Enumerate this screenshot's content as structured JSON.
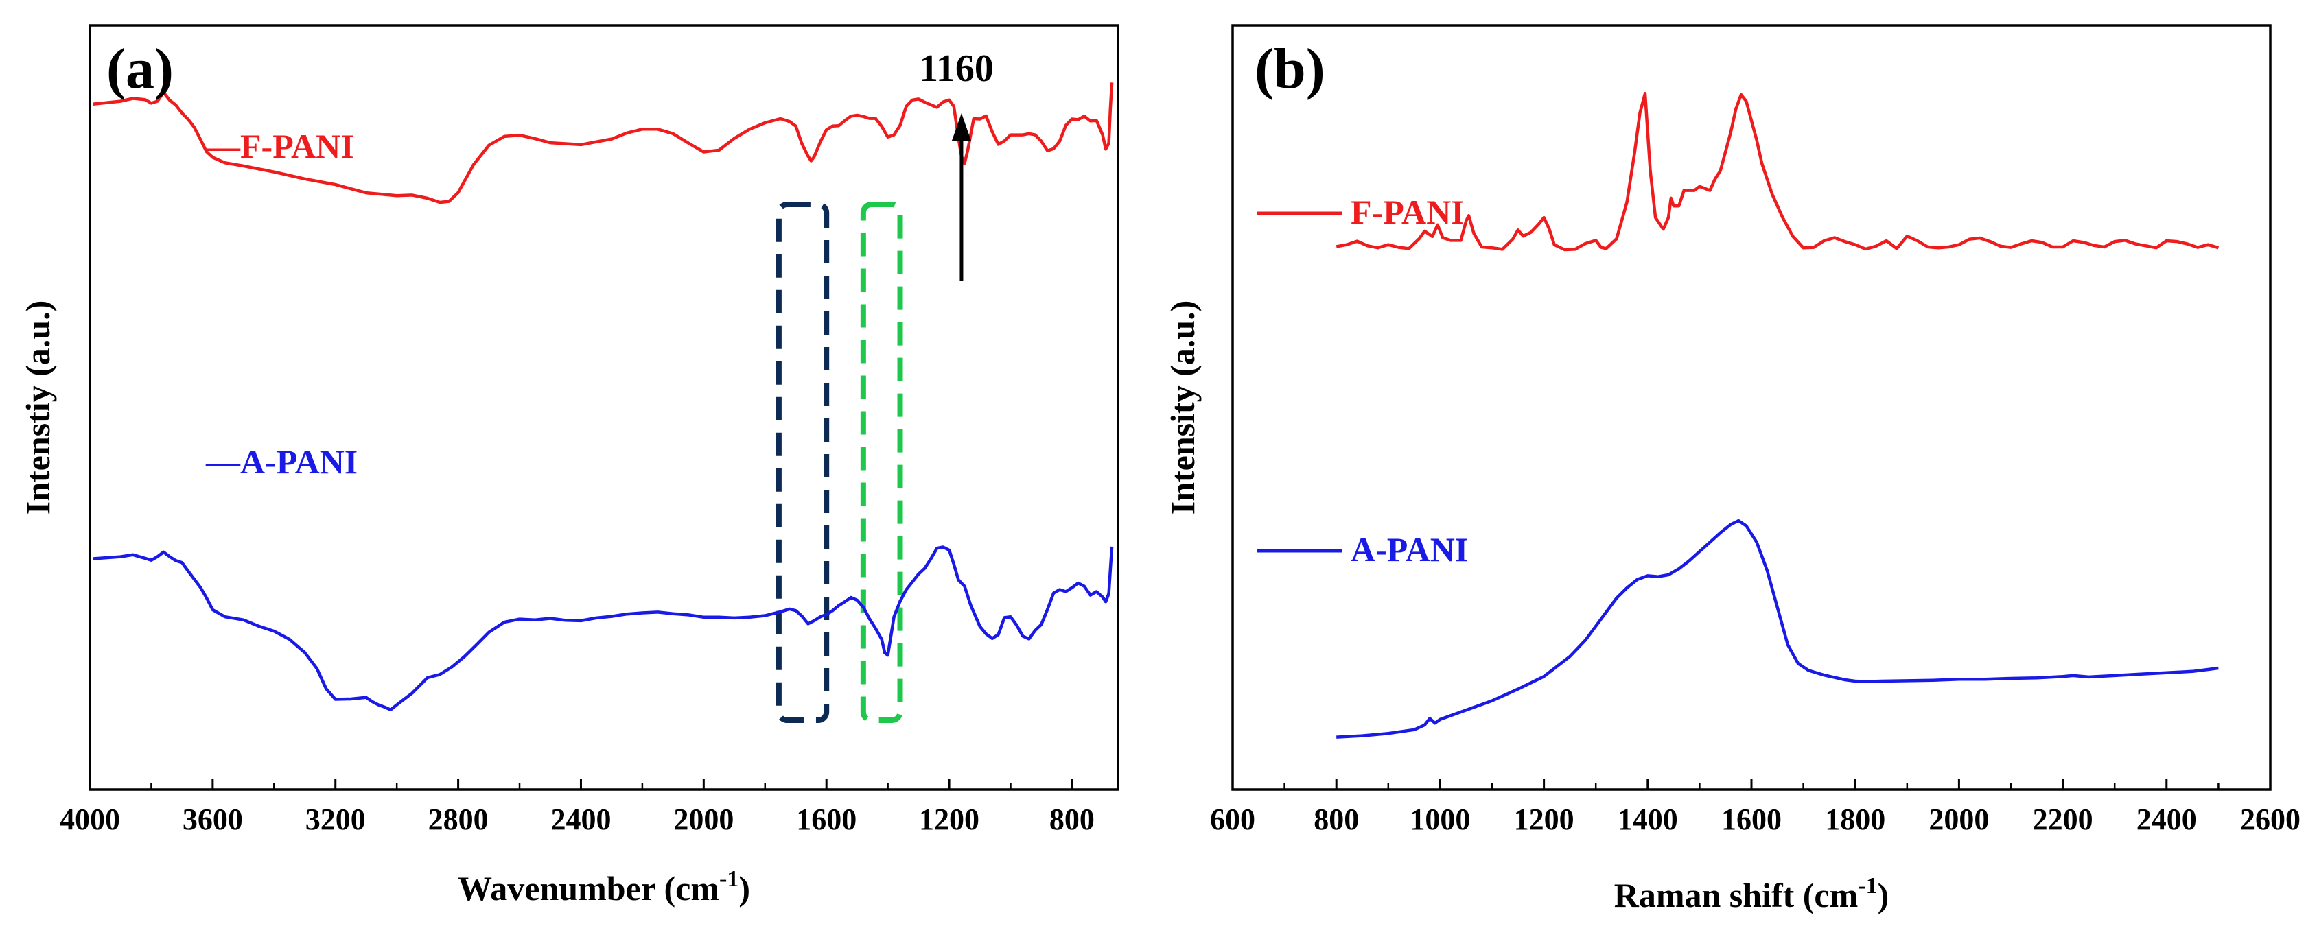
{
  "chart_data": [
    {
      "panel_label": "(a)",
      "type": "line",
      "xlabel": "Wavenumber (cm",
      "xlabel_sup": "-1",
      "xlabel_end": ")",
      "ylabel": "Intenstiy (a.u.)",
      "xlim": [
        4000,
        650
      ],
      "x_reversed": true,
      "xticks": [
        4000,
        3600,
        3200,
        2800,
        2400,
        2000,
        1600,
        1200,
        800
      ],
      "xtick_labels": [
        "4000",
        "3600",
        "3200",
        "2800",
        "2400",
        "2000",
        "1600",
        "1200",
        "800"
      ],
      "y_ticks_shown": false,
      "ylim": [
        0,
        1
      ],
      "legend_placement": "left, beside each trace",
      "series": [
        {
          "name": "—F-PANI",
          "color": "#ee1c1c",
          "x": [
            3990,
            3900,
            3860,
            3820,
            3800,
            3780,
            3760,
            3740,
            3720,
            3700,
            3680,
            3660,
            3640,
            3620,
            3600,
            3560,
            3500,
            3400,
            3300,
            3200,
            3100,
            3000,
            2950,
            2900,
            2860,
            2830,
            2800,
            2750,
            2700,
            2650,
            2600,
            2550,
            2500,
            2450,
            2400,
            2300,
            2250,
            2200,
            2150,
            2100,
            2050,
            2000,
            1950,
            1900,
            1850,
            1800,
            1750,
            1720,
            1700,
            1680,
            1660,
            1650,
            1640,
            1620,
            1600,
            1580,
            1560,
            1540,
            1520,
            1500,
            1480,
            1460,
            1440,
            1420,
            1400,
            1380,
            1360,
            1340,
            1320,
            1300,
            1280,
            1260,
            1240,
            1220,
            1200,
            1185,
            1170,
            1160,
            1150,
            1140,
            1120,
            1100,
            1080,
            1060,
            1040,
            1020,
            1000,
            980,
            960,
            940,
            920,
            900,
            880,
            860,
            840,
            820,
            800,
            780,
            760,
            740,
            720,
            700,
            690,
            680,
            675,
            670
          ],
          "y": [
            0.797,
            0.806,
            0.815,
            0.811,
            0.8,
            0.806,
            0.834,
            0.809,
            0.794,
            0.769,
            0.749,
            0.724,
            0.686,
            0.647,
            0.629,
            0.612,
            0.602,
            0.583,
            0.561,
            0.543,
            0.517,
            0.508,
            0.51,
            0.5,
            0.487,
            0.49,
            0.518,
            0.606,
            0.667,
            0.695,
            0.699,
            0.688,
            0.675,
            0.672,
            0.669,
            0.687,
            0.706,
            0.718,
            0.718,
            0.704,
            0.674,
            0.646,
            0.652,
            0.689,
            0.718,
            0.738,
            0.751,
            0.742,
            0.728,
            0.672,
            0.633,
            0.618,
            0.631,
            0.678,
            0.716,
            0.728,
            0.729,
            0.745,
            0.759,
            0.762,
            0.758,
            0.752,
            0.752,
            0.727,
            0.693,
            0.7,
            0.73,
            0.79,
            0.81,
            0.813,
            0.803,
            0.795,
            0.787,
            0.804,
            0.81,
            0.79,
            0.69,
            0.632,
            0.61,
            0.65,
            0.751,
            0.75,
            0.76,
            0.71,
            0.67,
            0.681,
            0.7,
            0.7,
            0.7,
            0.704,
            0.7,
            0.68,
            0.65,
            0.656,
            0.68,
            0.73,
            0.75,
            0.748,
            0.759,
            0.744,
            0.745,
            0.7,
            0.655,
            0.674,
            0.78,
            0.865
          ]
        },
        {
          "name": "—A-PANI",
          "color": "#1a1ae6",
          "x": [
            3990,
            3900,
            3860,
            3820,
            3800,
            3780,
            3760,
            3740,
            3720,
            3700,
            3680,
            3660,
            3640,
            3620,
            3600,
            3560,
            3500,
            3450,
            3400,
            3350,
            3300,
            3260,
            3230,
            3200,
            3150,
            3100,
            3080,
            3060,
            3040,
            3020,
            3000,
            2950,
            2900,
            2860,
            2820,
            2780,
            2740,
            2700,
            2650,
            2600,
            2550,
            2500,
            2450,
            2400,
            2350,
            2300,
            2250,
            2200,
            2150,
            2100,
            2050,
            2000,
            1950,
            1900,
            1850,
            1800,
            1750,
            1720,
            1700,
            1680,
            1660,
            1640,
            1620,
            1600,
            1580,
            1560,
            1540,
            1520,
            1500,
            1480,
            1460,
            1440,
            1420,
            1410,
            1400,
            1390,
            1380,
            1360,
            1340,
            1320,
            1300,
            1280,
            1260,
            1240,
            1220,
            1200,
            1185,
            1170,
            1150,
            1130,
            1100,
            1080,
            1060,
            1040,
            1020,
            1000,
            980,
            960,
            940,
            920,
            900,
            880,
            860,
            840,
            820,
            800,
            780,
            760,
            740,
            720,
            700,
            690,
            680,
            675,
            670
          ],
          "y": [
            0.47,
            0.475,
            0.48,
            0.471,
            0.466,
            0.475,
            0.487,
            0.475,
            0.465,
            0.46,
            0.438,
            0.417,
            0.396,
            0.369,
            0.338,
            0.32,
            0.312,
            0.296,
            0.283,
            0.262,
            0.228,
            0.186,
            0.134,
            0.107,
            0.108,
            0.112,
            0.101,
            0.093,
            0.087,
            0.08,
            0.093,
            0.123,
            0.163,
            0.171,
            0.191,
            0.217,
            0.248,
            0.28,
            0.306,
            0.314,
            0.312,
            0.316,
            0.311,
            0.31,
            0.317,
            0.321,
            0.327,
            0.33,
            0.332,
            0.328,
            0.325,
            0.319,
            0.319,
            0.317,
            0.319,
            0.323,
            0.333,
            0.34,
            0.336,
            0.322,
            0.302,
            0.31,
            0.32,
            0.326,
            0.336,
            0.349,
            0.359,
            0.37,
            0.363,
            0.345,
            0.315,
            0.29,
            0.262,
            0.227,
            0.221,
            0.27,
            0.32,
            0.36,
            0.39,
            0.41,
            0.43,
            0.445,
            0.469,
            0.497,
            0.5,
            0.492,
            0.456,
            0.415,
            0.399,
            0.35,
            0.295,
            0.276,
            0.264,
            0.274,
            0.318,
            0.32,
            0.298,
            0.27,
            0.263,
            0.285,
            0.3,
            0.339,
            0.381,
            0.39,
            0.385,
            0.395,
            0.407,
            0.399,
            0.376,
            0.385,
            0.371,
            0.359,
            0.38,
            0.44,
            0.501
          ]
        }
      ],
      "annotations": [
        {
          "text": "1160",
          "x": 1160,
          "arrow": "up"
        }
      ],
      "highlight_boxes": [
        {
          "x_from": 1755,
          "x_to": 1600,
          "color": "#0d2a55",
          "style": "dashed"
        },
        {
          "x_from": 1480,
          "x_to": 1360,
          "color": "#1ec84a",
          "style": "dashed"
        }
      ]
    },
    {
      "panel_label": "(b)",
      "type": "line",
      "xlabel": "Raman shift (cm",
      "xlabel_sup": "-1",
      "xlabel_end": ")",
      "ylabel": "Intensity (a.u.)",
      "xlim": [
        600,
        2600
      ],
      "xticks": [
        600,
        800,
        1000,
        1200,
        1400,
        1600,
        1800,
        2000,
        2200,
        2400,
        2600
      ],
      "xtick_labels": [
        "600",
        "800",
        "1000",
        "1200",
        "1400",
        "1600",
        "1800",
        "2000",
        "2200",
        "2400",
        "2600"
      ],
      "minor_xticks_step": 100,
      "y_ticks_shown": false,
      "ylim": [
        0,
        1
      ],
      "legend_placement": "left, beside each trace",
      "series": [
        {
          "name": "F-PANI",
          "color": "#ee1c1c",
          "x": [
            800,
            820,
            840,
            860,
            880,
            900,
            920,
            940,
            960,
            970,
            985,
            995,
            1005,
            1020,
            1040,
            1050,
            1055,
            1065,
            1080,
            1100,
            1120,
            1140,
            1150,
            1160,
            1175,
            1190,
            1200,
            1210,
            1220,
            1240,
            1260,
            1280,
            1300,
            1310,
            1320,
            1340,
            1360,
            1375,
            1385,
            1395,
            1405,
            1415,
            1430,
            1440,
            1445,
            1450,
            1460,
            1470,
            1480,
            1490,
            1500,
            1510,
            1520,
            1530,
            1540,
            1550,
            1560,
            1570,
            1580,
            1590,
            1600,
            1610,
            1620,
            1640,
            1660,
            1680,
            1700,
            1720,
            1740,
            1760,
            1780,
            1800,
            1820,
            1840,
            1860,
            1880,
            1900,
            1920,
            1940,
            1960,
            1980,
            2000,
            2020,
            2040,
            2060,
            2080,
            2100,
            2120,
            2140,
            2160,
            2180,
            2200,
            2220,
            2240,
            2260,
            2280,
            2300,
            2320,
            2340,
            2360,
            2380,
            2400,
            2420,
            2440,
            2460,
            2480,
            2500
          ],
          "y": [
            0.585,
            0.59,
            0.599,
            0.587,
            0.582,
            0.59,
            0.583,
            0.58,
            0.606,
            0.625,
            0.611,
            0.641,
            0.608,
            0.601,
            0.601,
            0.651,
            0.665,
            0.619,
            0.584,
            0.582,
            0.578,
            0.604,
            0.628,
            0.612,
            0.622,
            0.643,
            0.66,
            0.631,
            0.59,
            0.577,
            0.578,
            0.593,
            0.601,
            0.583,
            0.58,
            0.605,
            0.7,
            0.83,
            0.93,
            0.98,
            0.78,
            0.66,
            0.63,
            0.66,
            0.71,
            0.69,
            0.69,
            0.73,
            0.73,
            0.73,
            0.74,
            0.735,
            0.73,
            0.76,
            0.78,
            0.83,
            0.88,
            0.94,
            0.977,
            0.96,
            0.91,
            0.86,
            0.8,
            0.72,
            0.66,
            0.611,
            0.582,
            0.583,
            0.6,
            0.608,
            0.598,
            0.59,
            0.579,
            0.586,
            0.6,
            0.58,
            0.612,
            0.6,
            0.584,
            0.582,
            0.584,
            0.59,
            0.604,
            0.607,
            0.598,
            0.586,
            0.583,
            0.592,
            0.6,
            0.596,
            0.584,
            0.584,
            0.6,
            0.596,
            0.588,
            0.584,
            0.598,
            0.601,
            0.592,
            0.587,
            0.582,
            0.6,
            0.598,
            0.592,
            0.583,
            0.59,
            0.582
          ]
        },
        {
          "name": "A-PANI",
          "color": "#1a1ae6",
          "x": [
            800,
            850,
            900,
            950,
            970,
            980,
            990,
            1000,
            1050,
            1100,
            1150,
            1200,
            1250,
            1280,
            1300,
            1320,
            1340,
            1360,
            1380,
            1400,
            1420,
            1440,
            1460,
            1480,
            1500,
            1520,
            1540,
            1560,
            1575,
            1590,
            1610,
            1630,
            1650,
            1670,
            1690,
            1710,
            1740,
            1760,
            1780,
            1800,
            1820,
            1850,
            1900,
            1950,
            2000,
            2050,
            2100,
            2150,
            2200,
            2220,
            2250,
            2300,
            2350,
            2400,
            2450,
            2480,
            2500
          ],
          "y": [
            0.052,
            0.055,
            0.06,
            0.068,
            0.078,
            0.092,
            0.082,
            0.09,
            0.11,
            0.13,
            0.155,
            0.182,
            0.225,
            0.26,
            0.29,
            0.32,
            0.35,
            0.372,
            0.39,
            0.398,
            0.396,
            0.4,
            0.413,
            0.43,
            0.45,
            0.47,
            0.49,
            0.508,
            0.516,
            0.505,
            0.47,
            0.41,
            0.33,
            0.25,
            0.21,
            0.195,
            0.185,
            0.18,
            0.175,
            0.172,
            0.171,
            0.172,
            0.173,
            0.174,
            0.176,
            0.176,
            0.178,
            0.179,
            0.182,
            0.184,
            0.181,
            0.184,
            0.187,
            0.19,
            0.193,
            0.197,
            0.2
          ]
        }
      ]
    }
  ]
}
